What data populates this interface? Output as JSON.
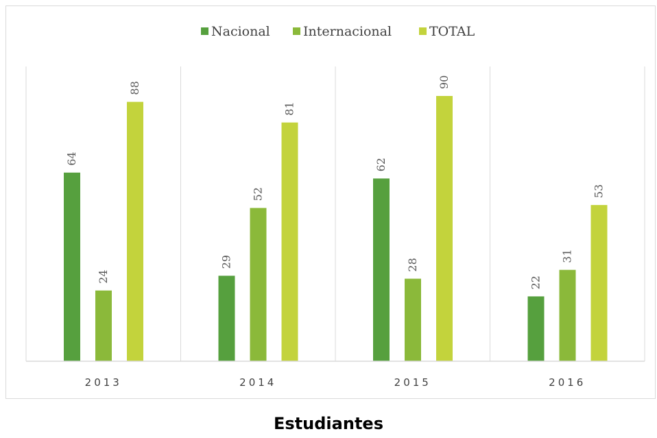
{
  "chart_data": {
    "type": "bar",
    "title": "Estudiantes",
    "xlabel": "",
    "ylabel": "",
    "categories": [
      "2013",
      "2014",
      "2015",
      "2016"
    ],
    "series": [
      {
        "name": "Nacional",
        "values": [
          64,
          29,
          62,
          22
        ],
        "color": "#56a03e"
      },
      {
        "name": "Internacional",
        "values": [
          24,
          52,
          28,
          31
        ],
        "color": "#8bb93a"
      },
      {
        "name": "TOTAL",
        "values": [
          88,
          81,
          90,
          53
        ],
        "color": "#c3d33c"
      }
    ],
    "ylim": [
      0,
      100
    ],
    "grid": false,
    "legend_position": "top",
    "data_labels": true,
    "data_label_orientation": "vertical"
  }
}
